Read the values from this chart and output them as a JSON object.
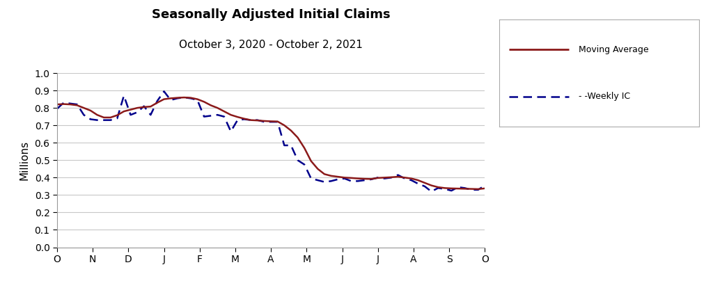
{
  "title": "Seasonally Adjusted Initial Claims",
  "subtitle": "October 3, 2020 - October 2, 2021",
  "ylabel": "Millions",
  "ylim": [
    0.0,
    1.0
  ],
  "yticks": [
    0.0,
    0.1,
    0.2,
    0.3,
    0.4,
    0.5,
    0.6,
    0.7,
    0.8,
    0.9,
    1.0
  ],
  "xtick_labels": [
    "O",
    "N",
    "D",
    "J",
    "F",
    "M",
    "A",
    "M",
    "J",
    "J",
    "A",
    "S",
    "O"
  ],
  "moving_average_color": "#8B1A1A",
  "weekly_ic_color": "#00008B",
  "background_color": "#ffffff",
  "grid_color": "#c8c8c8",
  "weekly_ic": [
    0.795,
    0.83,
    0.825,
    0.82,
    0.76,
    0.735,
    0.73,
    0.73,
    0.73,
    0.74,
    0.87,
    0.76,
    0.775,
    0.81,
    0.76,
    0.84,
    0.895,
    0.845,
    0.855,
    0.86,
    0.855,
    0.845,
    0.75,
    0.755,
    0.76,
    0.75,
    0.665,
    0.73,
    0.735,
    0.73,
    0.73,
    0.72,
    0.72,
    0.72,
    0.585,
    0.585,
    0.5,
    0.475,
    0.395,
    0.385,
    0.375,
    0.38,
    0.39,
    0.395,
    0.38,
    0.38,
    0.385,
    0.39,
    0.4,
    0.395,
    0.4,
    0.415,
    0.395,
    0.385,
    0.365,
    0.35,
    0.32,
    0.34,
    0.335,
    0.325,
    0.345,
    0.34,
    0.33,
    0.33,
    0.355
  ],
  "moving_average": [
    0.82,
    0.822,
    0.82,
    0.815,
    0.8,
    0.785,
    0.76,
    0.745,
    0.745,
    0.758,
    0.78,
    0.79,
    0.8,
    0.805,
    0.808,
    0.83,
    0.85,
    0.855,
    0.858,
    0.86,
    0.858,
    0.85,
    0.835,
    0.815,
    0.8,
    0.78,
    0.76,
    0.748,
    0.738,
    0.73,
    0.728,
    0.725,
    0.723,
    0.722,
    0.7,
    0.67,
    0.63,
    0.57,
    0.495,
    0.45,
    0.42,
    0.41,
    0.405,
    0.4,
    0.398,
    0.395,
    0.393,
    0.392,
    0.398,
    0.4,
    0.402,
    0.405,
    0.4,
    0.395,
    0.385,
    0.37,
    0.355,
    0.345,
    0.34,
    0.338,
    0.337,
    0.336,
    0.335,
    0.334,
    0.338
  ]
}
